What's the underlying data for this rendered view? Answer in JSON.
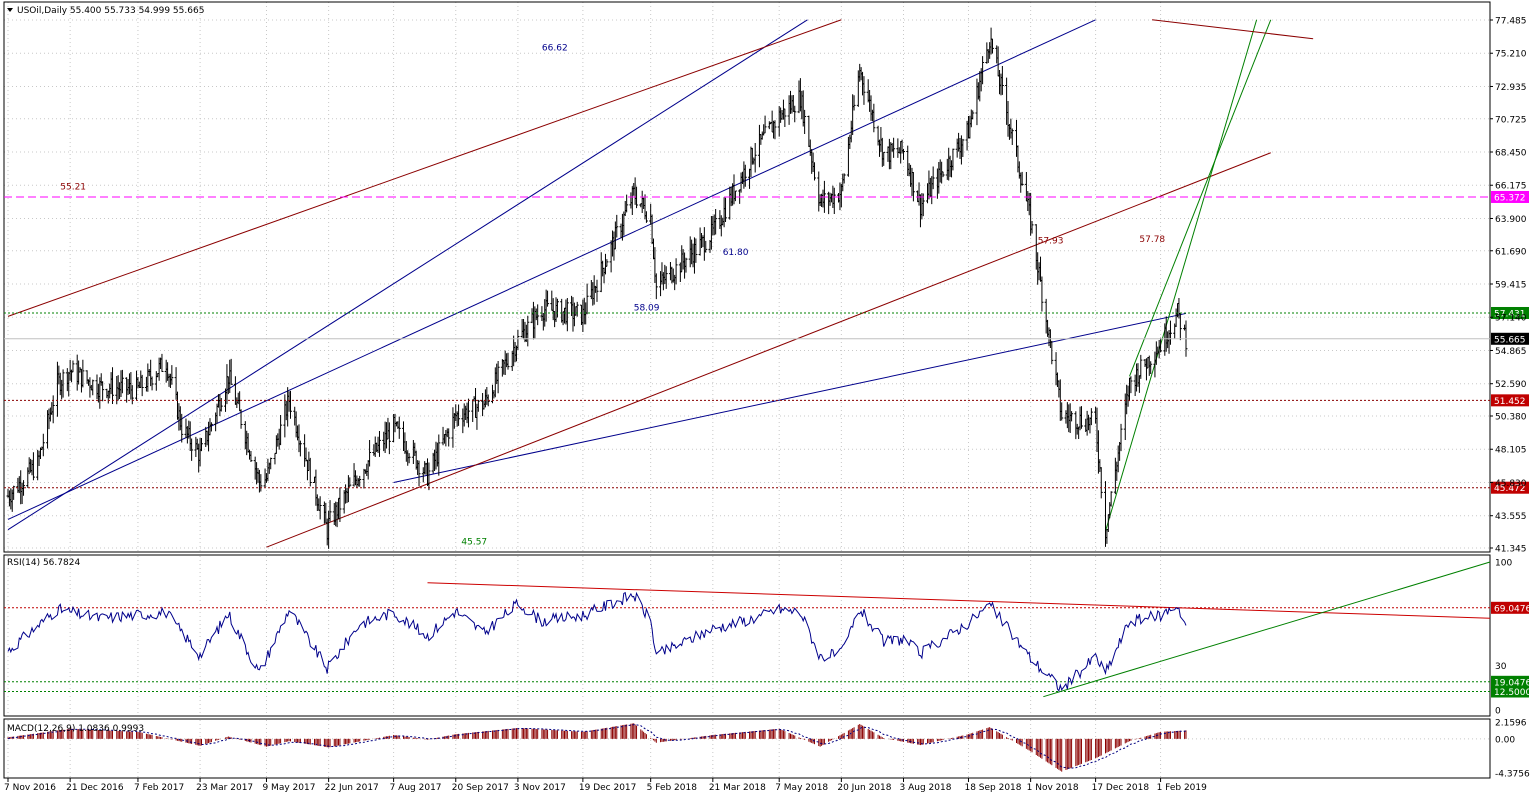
{
  "header": {
    "symbol_line": "USOil,Daily  55.400 55.733 54.999 55.665"
  },
  "colors": {
    "background": "#ffffff",
    "grid": "#c8c8c8",
    "candles": "#000000",
    "channel_blue": "#00008b",
    "channel_red": "#8b0000",
    "trend_green": "#008000",
    "magenta_level": "#ff00ff",
    "rsi_line": "#00008b",
    "macd_hist": "#8b0000"
  },
  "chart_data": [
    {
      "type": "candlestick",
      "title": "USOil,Daily",
      "ohlc_last": {
        "open": 55.4,
        "high": 55.733,
        "low": 54.999,
        "close": 55.665
      },
      "ylim": [
        41.345,
        77.485
      ],
      "y_ticks": [
        "77.485",
        "75.210",
        "72.935",
        "70.725",
        "68.450",
        "66.175",
        "63.900",
        "61.690",
        "59.415",
        "57.140",
        "54.865",
        "52.590",
        "50.380",
        "48.105",
        "45.830",
        "43.555",
        "41.345"
      ],
      "x_ticks": [
        "7 Nov 2016",
        "21 Dec 2016",
        "7 Feb 2017",
        "23 Mar 2017",
        "9 May 2017",
        "22 Jun 2017",
        "7 Aug 2017",
        "20 Sep 2017",
        "3 Nov 2017",
        "19 Dec 2017",
        "5 Feb 2018",
        "21 Mar 2018",
        "7 May 2018",
        "20 Jun 2018",
        "3 Aug 2018",
        "18 Sep 2018",
        "1 Nov 2018",
        "17 Dec 2018",
        "1 Feb 2019"
      ],
      "close_series": [
        [
          "2016-11-07",
          44.9
        ],
        [
          "2016-11-28",
          47.1
        ],
        [
          "2016-12-12",
          52.6
        ],
        [
          "2016-12-21",
          53.5
        ],
        [
          "2017-01-10",
          52.4
        ],
        [
          "2017-02-07",
          52.2
        ],
        [
          "2017-02-27",
          54.1
        ],
        [
          "2017-03-10",
          49.6
        ],
        [
          "2017-03-23",
          47.7
        ],
        [
          "2017-04-12",
          53.1
        ],
        [
          "2017-05-04",
          45.9
        ],
        [
          "2017-05-09",
          46.1
        ],
        [
          "2017-05-25",
          51.5
        ],
        [
          "2017-06-21",
          42.5
        ],
        [
          "2017-06-22",
          43.0
        ],
        [
          "2017-07-14",
          46.5
        ],
        [
          "2017-08-07",
          49.6
        ],
        [
          "2017-08-31",
          46.3
        ],
        [
          "2017-09-20",
          50.4
        ],
        [
          "2017-10-10",
          51.2
        ],
        [
          "2017-11-03",
          55.6
        ],
        [
          "2017-11-20",
          57.7
        ],
        [
          "2017-12-19",
          57.3
        ],
        [
          "2018-01-24",
          65.6
        ],
        [
          "2018-02-05",
          64.0
        ],
        [
          "2018-02-09",
          59.2
        ],
        [
          "2018-03-21",
          62.9
        ],
        [
          "2018-04-19",
          68.4
        ],
        [
          "2018-05-07",
          70.9
        ],
        [
          "2018-05-22",
          72.2
        ],
        [
          "2018-06-05",
          65.0
        ],
        [
          "2018-06-20",
          65.7
        ],
        [
          "2018-07-03",
          74.1
        ],
        [
          "2018-07-20",
          68.3
        ],
        [
          "2018-08-03",
          68.5
        ],
        [
          "2018-08-15",
          64.8
        ],
        [
          "2018-09-18",
          69.9
        ],
        [
          "2018-10-03",
          76.3
        ],
        [
          "2018-10-20",
          69.1
        ],
        [
          "2018-11-01",
          63.7
        ],
        [
          "2018-11-23",
          50.4
        ],
        [
          "2018-12-17",
          49.9
        ],
        [
          "2018-12-24",
          42.5
        ],
        [
          "2019-01-10",
          52.6
        ],
        [
          "2019-02-01",
          55.3
        ],
        [
          "2019-02-13",
          57.4
        ],
        [
          "2019-02-19",
          55.67
        ]
      ],
      "horizontal_levels": [
        {
          "value": 65.372,
          "label": "65.372",
          "style": "dashed-magenta"
        },
        {
          "value": 57.431,
          "label": "57.431",
          "style": "dotted-green"
        },
        {
          "value": 55.665,
          "label": "55.665",
          "style": "current-price"
        },
        {
          "value": 51.452,
          "label": "51.452",
          "style": "dotted-red"
        },
        {
          "value": 45.472,
          "label": "45.472",
          "style": "dotted-red"
        }
      ],
      "annotations": [
        {
          "text": "66.62",
          "color": "#00008b"
        },
        {
          "text": "61.80",
          "color": "#00008b"
        },
        {
          "text": "58.09",
          "color": "#00008b"
        },
        {
          "text": "57.93",
          "color": "#8b0000"
        },
        {
          "text": "57.78",
          "color": "#8b0000"
        },
        {
          "text": "55.21",
          "color": "#8b0000"
        },
        {
          "text": "45.57",
          "color": "#008000"
        }
      ]
    },
    {
      "type": "line",
      "title": "RSI(14) 56.7824",
      "ylim": [
        0,
        100
      ],
      "y_ticks": [
        "100",
        "30",
        "0"
      ],
      "levels": [
        {
          "value": 69.0476,
          "label": "69.0476"
        },
        {
          "value": 19.0476,
          "label": "19.0476"
        },
        {
          "value": 12.5,
          "label": "12.5000"
        }
      ],
      "series": [
        [
          "2016-11-07",
          40
        ],
        [
          "2016-12-12",
          68
        ],
        [
          "2017-01-10",
          62
        ],
        [
          "2017-02-27",
          66
        ],
        [
          "2017-03-23",
          37
        ],
        [
          "2017-04-12",
          65
        ],
        [
          "2017-05-04",
          25
        ],
        [
          "2017-05-25",
          68
        ],
        [
          "2017-06-21",
          28
        ],
        [
          "2017-07-14",
          58
        ],
        [
          "2017-08-07",
          66
        ],
        [
          "2017-08-31",
          50
        ],
        [
          "2017-09-20",
          67
        ],
        [
          "2017-10-10",
          52
        ],
        [
          "2017-11-03",
          72
        ],
        [
          "2017-11-20",
          60
        ],
        [
          "2017-12-19",
          64
        ],
        [
          "2018-01-24",
          78
        ],
        [
          "2018-02-05",
          60
        ],
        [
          "2018-02-09",
          37
        ],
        [
          "2018-03-21",
          55
        ],
        [
          "2018-04-19",
          62
        ],
        [
          "2018-05-07",
          68
        ],
        [
          "2018-05-22",
          66
        ],
        [
          "2018-06-05",
          36
        ],
        [
          "2018-06-20",
          38
        ],
        [
          "2018-07-03",
          68
        ],
        [
          "2018-07-20",
          46
        ],
        [
          "2018-08-03",
          48
        ],
        [
          "2018-08-15",
          38
        ],
        [
          "2018-09-18",
          59
        ],
        [
          "2018-10-03",
          71
        ],
        [
          "2018-10-20",
          50
        ],
        [
          "2018-11-01",
          35
        ],
        [
          "2018-11-23",
          14
        ],
        [
          "2018-12-17",
          36
        ],
        [
          "2018-12-24",
          25
        ],
        [
          "2019-01-10",
          60
        ],
        [
          "2019-02-01",
          64
        ],
        [
          "2019-02-13",
          71
        ],
        [
          "2019-02-19",
          56.78
        ]
      ]
    },
    {
      "type": "bar",
      "title": "MACD(12,26,9) 1.0836 0.9993",
      "ylim": [
        -4.3756,
        2.1596
      ],
      "y_ticks": [
        "2.1596",
        "0.00",
        "-4.3756"
      ],
      "series": [
        [
          "2016-11-07",
          0.2
        ],
        [
          "2016-12-21",
          1.3
        ],
        [
          "2017-02-07",
          0.9
        ],
        [
          "2017-03-23",
          -0.9
        ],
        [
          "2017-04-12",
          0.3
        ],
        [
          "2017-05-09",
          -1.0
        ],
        [
          "2017-05-25",
          -0.3
        ],
        [
          "2017-06-22",
          -1.1
        ],
        [
          "2017-08-07",
          0.5
        ],
        [
          "2017-08-31",
          -0.1
        ],
        [
          "2017-09-20",
          0.6
        ],
        [
          "2017-11-03",
          1.4
        ],
        [
          "2017-12-19",
          0.9
        ],
        [
          "2018-01-24",
          2.0
        ],
        [
          "2018-02-09",
          -0.5
        ],
        [
          "2018-03-21",
          0.5
        ],
        [
          "2018-05-07",
          1.3
        ],
        [
          "2018-06-05",
          -1.0
        ],
        [
          "2018-07-03",
          1.9
        ],
        [
          "2018-07-20",
          0.1
        ],
        [
          "2018-08-15",
          -0.8
        ],
        [
          "2018-09-18",
          0.6
        ],
        [
          "2018-10-03",
          1.5
        ],
        [
          "2018-11-01",
          -1.6
        ],
        [
          "2018-11-23",
          -4.2
        ],
        [
          "2018-12-17",
          -2.5
        ],
        [
          "2019-01-10",
          -0.3
        ],
        [
          "2019-02-01",
          0.9
        ],
        [
          "2019-02-19",
          1.08
        ]
      ]
    }
  ]
}
